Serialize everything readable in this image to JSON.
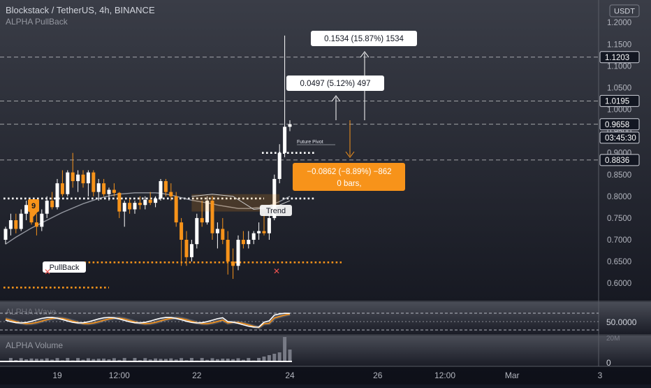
{
  "header": {
    "symbol_line": "Blockstack / TetherUS, 4h, BINANCE",
    "indicator_name": "ALPHA PullBack",
    "currency_badge": "USDT"
  },
  "price_axis": {
    "ticks": [
      "1.2000",
      "1.1500",
      "1.1000",
      "1.0500",
      "1.0000",
      "0.9500",
      "0.9000",
      "0.8500",
      "0.8000",
      "0.7500",
      "0.7000",
      "0.6500",
      "0.6000"
    ],
    "badges": [
      {
        "label": "1.1203",
        "value": 1.1203
      },
      {
        "label": "1.0195",
        "value": 1.0195
      },
      {
        "label": "0.9658",
        "value": 0.9658
      },
      {
        "label": "03:45:30",
        "value": 0.935
      },
      {
        "label": "0.8836",
        "value": 0.8836
      }
    ]
  },
  "time_axis": {
    "ticks": [
      {
        "label": "19",
        "bar": 10
      },
      {
        "label": "12:00",
        "bar": 22
      },
      {
        "label": "22",
        "bar": 37
      },
      {
        "label": "24",
        "bar": 55
      },
      {
        "label": "26",
        "bar": 72
      },
      {
        "label": "12:00",
        "bar": 85
      },
      {
        "label": "Mar",
        "bar": 98
      },
      {
        "label": "3",
        "bar": 115
      }
    ]
  },
  "annotations": {
    "target1": "0.1534 (15.87%) 1534",
    "target2": "0.0497 (5.12%) 497",
    "stop_line1": "−0.0862 (−8.89%) −862",
    "stop_line2": "0 bars,",
    "future_pivot": "Future Pivot",
    "trend": "Trend",
    "pullback": "PullBack",
    "signal": "9"
  },
  "subpanes": {
    "wave": {
      "title": "ALPHA Wave",
      "axis_label": "50.0000"
    },
    "volume": {
      "title": "ALPHA Volume",
      "axis_labels": [
        "20M",
        "0"
      ]
    }
  },
  "colors": {
    "background": "#131722",
    "bull": "#ffffff",
    "bear": "#f7931a",
    "level_orange": "#f7931a",
    "axis_text": "#b2b5be",
    "cross": "#ef5350"
  },
  "chart_data": {
    "type": "candlestick",
    "title": "Blockstack / TetherUS, 4h, BINANCE",
    "ylim": [
      0.56,
      1.21
    ],
    "candles": [
      {
        "o": 0.7,
        "h": 0.73,
        "l": 0.69,
        "c": 0.725
      },
      {
        "o": 0.725,
        "h": 0.76,
        "l": 0.71,
        "c": 0.745
      },
      {
        "o": 0.745,
        "h": 0.76,
        "l": 0.715,
        "c": 0.725
      },
      {
        "o": 0.725,
        "h": 0.77,
        "l": 0.72,
        "c": 0.76
      },
      {
        "o": 0.76,
        "h": 0.79,
        "l": 0.745,
        "c": 0.78
      },
      {
        "o": 0.78,
        "h": 0.79,
        "l": 0.735,
        "c": 0.74
      },
      {
        "o": 0.74,
        "h": 0.76,
        "l": 0.71,
        "c": 0.73
      },
      {
        "o": 0.73,
        "h": 0.77,
        "l": 0.72,
        "c": 0.76
      },
      {
        "o": 0.76,
        "h": 0.8,
        "l": 0.75,
        "c": 0.79
      },
      {
        "o": 0.79,
        "h": 0.81,
        "l": 0.77,
        "c": 0.775
      },
      {
        "o": 0.775,
        "h": 0.84,
        "l": 0.77,
        "c": 0.83
      },
      {
        "o": 0.83,
        "h": 0.86,
        "l": 0.8,
        "c": 0.805
      },
      {
        "o": 0.805,
        "h": 0.86,
        "l": 0.8,
        "c": 0.855
      },
      {
        "o": 0.855,
        "h": 0.9,
        "l": 0.82,
        "c": 0.835
      },
      {
        "o": 0.835,
        "h": 0.86,
        "l": 0.81,
        "c": 0.85
      },
      {
        "o": 0.85,
        "h": 0.86,
        "l": 0.82,
        "c": 0.83
      },
      {
        "o": 0.83,
        "h": 0.86,
        "l": 0.8,
        "c": 0.855
      },
      {
        "o": 0.855,
        "h": 0.86,
        "l": 0.8,
        "c": 0.81
      },
      {
        "o": 0.81,
        "h": 0.84,
        "l": 0.79,
        "c": 0.83
      },
      {
        "o": 0.83,
        "h": 0.84,
        "l": 0.8,
        "c": 0.805
      },
      {
        "o": 0.805,
        "h": 0.82,
        "l": 0.79,
        "c": 0.815
      },
      {
        "o": 0.815,
        "h": 0.83,
        "l": 0.8,
        "c": 0.808
      },
      {
        "o": 0.808,
        "h": 0.81,
        "l": 0.75,
        "c": 0.765
      },
      {
        "o": 0.765,
        "h": 0.79,
        "l": 0.73,
        "c": 0.785
      },
      {
        "o": 0.785,
        "h": 0.795,
        "l": 0.76,
        "c": 0.77
      },
      {
        "o": 0.77,
        "h": 0.79,
        "l": 0.76,
        "c": 0.785
      },
      {
        "o": 0.785,
        "h": 0.8,
        "l": 0.77,
        "c": 0.78
      },
      {
        "o": 0.78,
        "h": 0.8,
        "l": 0.77,
        "c": 0.792
      },
      {
        "o": 0.792,
        "h": 0.81,
        "l": 0.78,
        "c": 0.785
      },
      {
        "o": 0.785,
        "h": 0.8,
        "l": 0.775,
        "c": 0.795
      },
      {
        "o": 0.795,
        "h": 0.84,
        "l": 0.79,
        "c": 0.835
      },
      {
        "o": 0.835,
        "h": 0.84,
        "l": 0.8,
        "c": 0.81
      },
      {
        "o": 0.81,
        "h": 0.83,
        "l": 0.79,
        "c": 0.8
      },
      {
        "o": 0.8,
        "h": 0.81,
        "l": 0.73,
        "c": 0.74
      },
      {
        "o": 0.74,
        "h": 0.75,
        "l": 0.64,
        "c": 0.7
      },
      {
        "o": 0.7,
        "h": 0.72,
        "l": 0.64,
        "c": 0.66
      },
      {
        "o": 0.66,
        "h": 0.7,
        "l": 0.65,
        "c": 0.69
      },
      {
        "o": 0.69,
        "h": 0.76,
        "l": 0.68,
        "c": 0.75
      },
      {
        "o": 0.75,
        "h": 0.79,
        "l": 0.73,
        "c": 0.74
      },
      {
        "o": 0.74,
        "h": 0.8,
        "l": 0.735,
        "c": 0.79
      },
      {
        "o": 0.79,
        "h": 0.8,
        "l": 0.7,
        "c": 0.715
      },
      {
        "o": 0.715,
        "h": 0.74,
        "l": 0.68,
        "c": 0.725
      },
      {
        "o": 0.725,
        "h": 0.75,
        "l": 0.69,
        "c": 0.7
      },
      {
        "o": 0.7,
        "h": 0.72,
        "l": 0.62,
        "c": 0.65
      },
      {
        "o": 0.65,
        "h": 0.68,
        "l": 0.61,
        "c": 0.64
      },
      {
        "o": 0.64,
        "h": 0.71,
        "l": 0.63,
        "c": 0.7
      },
      {
        "o": 0.7,
        "h": 0.72,
        "l": 0.68,
        "c": 0.69
      },
      {
        "o": 0.69,
        "h": 0.72,
        "l": 0.68,
        "c": 0.7
      },
      {
        "o": 0.7,
        "h": 0.72,
        "l": 0.69,
        "c": 0.715
      },
      {
        "o": 0.715,
        "h": 0.74,
        "l": 0.7,
        "c": 0.72
      },
      {
        "o": 0.72,
        "h": 0.76,
        "l": 0.71,
        "c": 0.715
      },
      {
        "o": 0.715,
        "h": 0.76,
        "l": 0.7,
        "c": 0.75
      },
      {
        "o": 0.75,
        "h": 0.85,
        "l": 0.745,
        "c": 0.84
      },
      {
        "o": 0.84,
        "h": 0.92,
        "l": 0.83,
        "c": 0.9
      },
      {
        "o": 0.9,
        "h": 1.17,
        "l": 0.89,
        "c": 0.96
      },
      {
        "o": 0.96,
        "h": 0.975,
        "l": 0.95,
        "c": 0.966
      }
    ],
    "sma": [
      0.69,
      0.698,
      0.706,
      0.713,
      0.72,
      0.727,
      0.733,
      0.739,
      0.745,
      0.751,
      0.757,
      0.763,
      0.768,
      0.773,
      0.778,
      0.783,
      0.787,
      0.791,
      0.795,
      0.798,
      0.801,
      0.803,
      0.805,
      0.806,
      0.807,
      0.808,
      0.808,
      0.808,
      0.808,
      0.808,
      0.807,
      0.805,
      0.803,
      0.8,
      0.797,
      0.794,
      0.791,
      0.789,
      0.787,
      0.785,
      0.783,
      0.78,
      0.778,
      0.776,
      0.774,
      0.772,
      0.772,
      0.772,
      0.773,
      0.774,
      0.776,
      0.779,
      0.783,
      0.788,
      0.794,
      0.8
    ],
    "levels": [
      {
        "value": 1.1203,
        "style": "dashed",
        "color": "#ffffff"
      },
      {
        "value": 1.0195,
        "style": "dashed",
        "color": "#ffffff"
      },
      {
        "value": 0.9658,
        "style": "dashed",
        "color": "#ffffff"
      },
      {
        "value": 0.8836,
        "style": "dashed",
        "color": "#ffffff"
      },
      {
        "value": 0.9,
        "style": "dotted",
        "color": "#ffffff",
        "from_bar": 50,
        "to_bar": 60
      },
      {
        "value": 0.795,
        "style": "dotted",
        "color": "#ffffff",
        "from_bar": 0,
        "to_bar": 50
      },
      {
        "value": 0.795,
        "style": "dotted",
        "color": "#ffffff",
        "from_bar": 54,
        "to_bar": 60
      },
      {
        "value": 0.648,
        "style": "dotted",
        "color": "#f7931a",
        "from_bar": 14,
        "to_bar": 65
      },
      {
        "value": 0.59,
        "style": "dotted",
        "color": "#f7931a",
        "from_bar": 0,
        "to_bar": 20
      }
    ]
  }
}
